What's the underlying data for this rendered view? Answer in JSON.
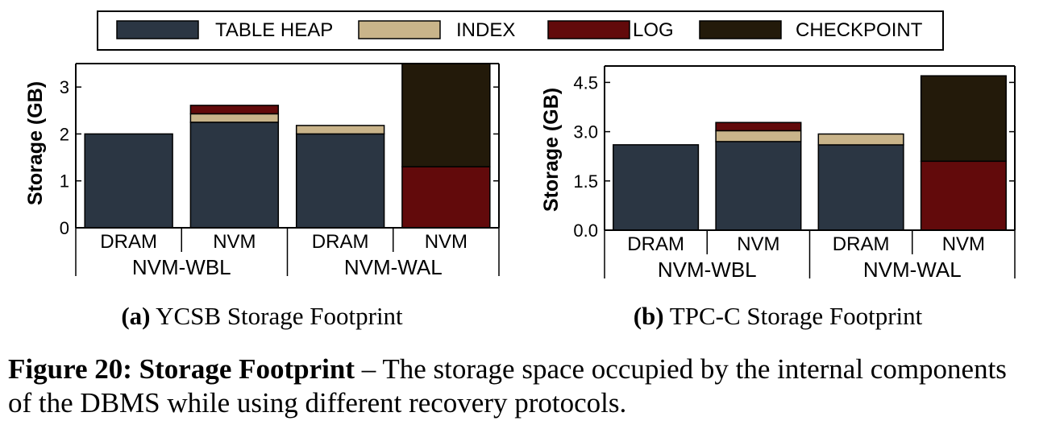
{
  "legend": {
    "items": [
      {
        "label": "TABLE HEAP",
        "color": "#2b3643"
      },
      {
        "label": "INDEX",
        "color": "#c9b48a"
      },
      {
        "label": "LOG",
        "color": "#620a0b"
      },
      {
        "label": "CHECKPOINT",
        "color": "#231a0a"
      }
    ]
  },
  "chart_data": [
    {
      "type": "bar",
      "stacked": true,
      "subcaption_prefix": "(a)",
      "subcaption": "YCSB Storage Footprint",
      "ylabel": "Storage (GB)",
      "ylim": [
        0,
        3.5
      ],
      "yticks": [
        "0",
        "1",
        "2",
        "3"
      ],
      "ytick_values": [
        0,
        1,
        2,
        3
      ],
      "categories": [
        "DRAM",
        "NVM",
        "DRAM",
        "NVM"
      ],
      "groups": [
        "NVM-WBL",
        "NVM-WAL"
      ],
      "series": [
        {
          "name": "TABLE HEAP",
          "values": [
            2.0,
            2.25,
            2.0,
            0
          ]
        },
        {
          "name": "INDEX",
          "values": [
            0,
            0.18,
            0.18,
            0
          ]
        },
        {
          "name": "LOG",
          "values": [
            0,
            0.18,
            0,
            1.3
          ]
        },
        {
          "name": "CHECKPOINT",
          "values": [
            0,
            0,
            0,
            2.2
          ]
        }
      ]
    },
    {
      "type": "bar",
      "stacked": true,
      "subcaption_prefix": "(b)",
      "subcaption": "TPC-C Storage Footprint",
      "ylabel": "Storage (GB)",
      "ylim": [
        0,
        5.0
      ],
      "yticks": [
        "0.0",
        "1.5",
        "3.0",
        "4.5"
      ],
      "ytick_values": [
        0,
        1.5,
        3.0,
        4.5
      ],
      "categories": [
        "DRAM",
        "NVM",
        "DRAM",
        "NVM"
      ],
      "groups": [
        "NVM-WBL",
        "NVM-WAL"
      ],
      "series": [
        {
          "name": "TABLE HEAP",
          "values": [
            2.6,
            2.7,
            2.6,
            0
          ]
        },
        {
          "name": "INDEX",
          "values": [
            0,
            0.33,
            0.33,
            0
          ]
        },
        {
          "name": "LOG",
          "values": [
            0,
            0.25,
            0,
            2.1
          ]
        },
        {
          "name": "CHECKPOINT",
          "values": [
            0,
            0,
            0,
            2.6
          ]
        }
      ]
    }
  ],
  "caption": {
    "label": "Figure 20: Storage Footprint",
    "text": " – The storage space occupied by the internal components of the DBMS while using different recovery protocols."
  }
}
